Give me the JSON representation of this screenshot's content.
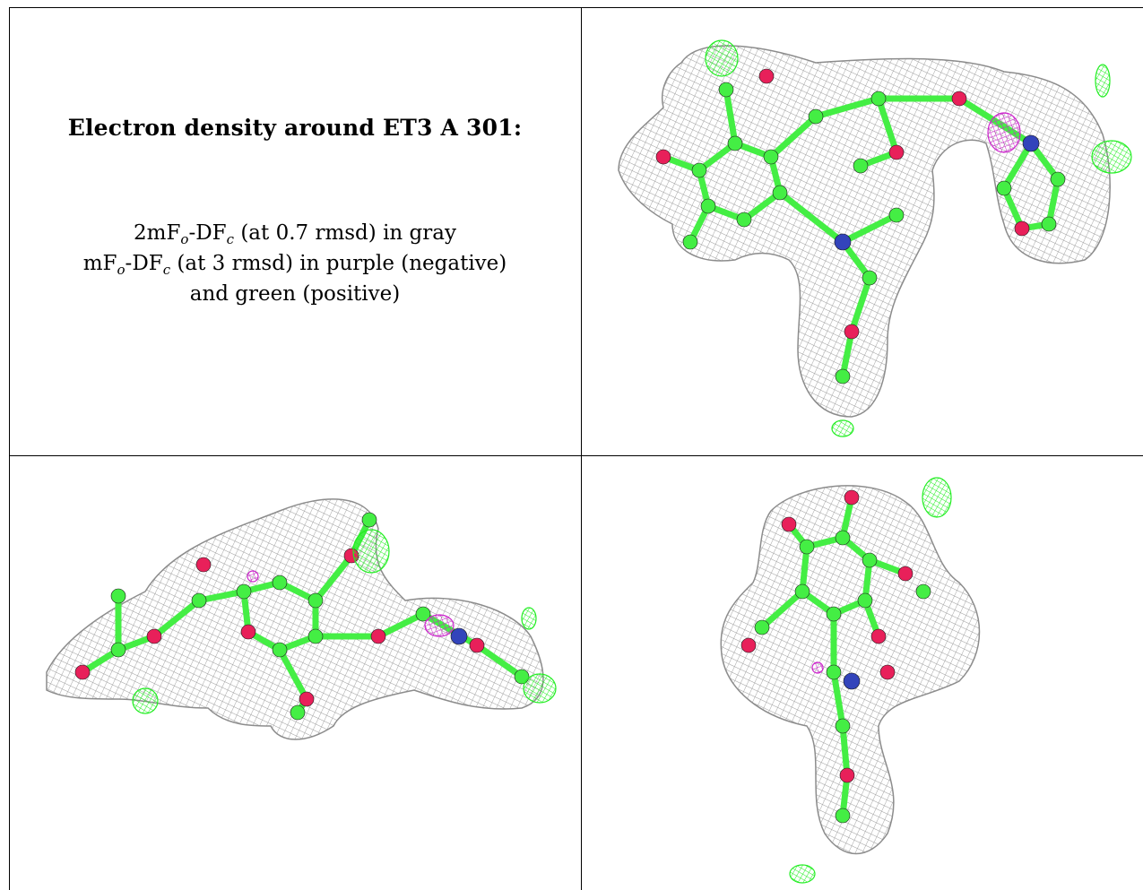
{
  "caption": {
    "title": "Electron density around ET3 A 301:",
    "line1": {
      "pre": "2mF",
      "sub1": "o",
      "mid": "-DF",
      "sub2": "c",
      "post": " (at 0.7 rmsd) in gray"
    },
    "line2": {
      "pre": "mF",
      "sub1": "o",
      "mid": "-DF",
      "sub2": "c",
      "post": " (at 3 rmsd) in purple (negative)"
    },
    "line3": "and green (positive)"
  },
  "panels": [
    {
      "name": "view-top-right"
    },
    {
      "name": "view-bottom-left"
    },
    {
      "name": "view-bottom-right"
    }
  ],
  "colors": {
    "mesh_2fofc": "#9a9a9a",
    "mesh_positive": "#22ee22",
    "mesh_negative": "#cc22cc",
    "carbon": "#44ee44",
    "oxygen": "#e8205a",
    "nitrogen": "#3344bb"
  }
}
